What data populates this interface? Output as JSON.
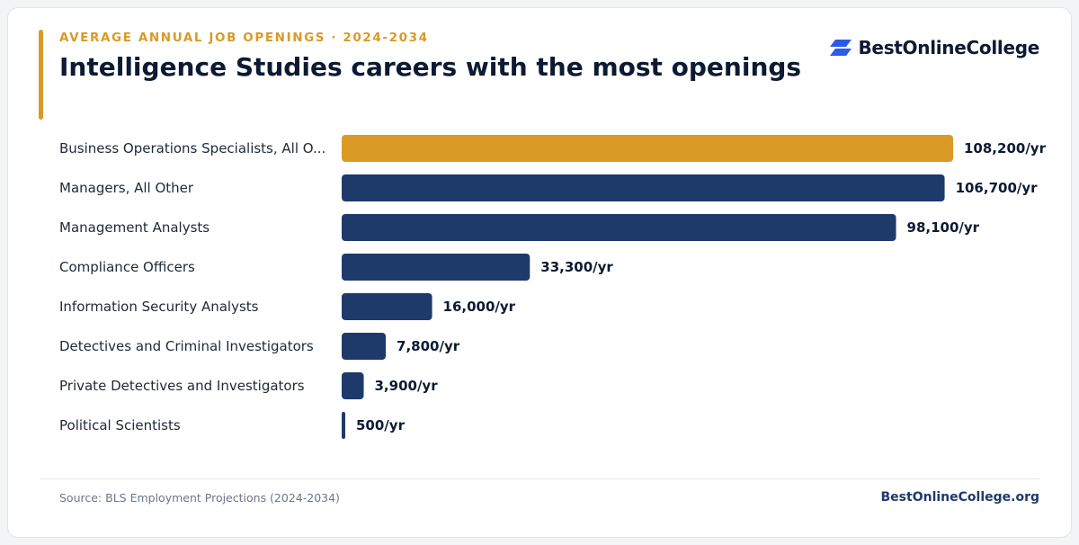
{
  "header": {
    "eyebrow": "AVERAGE ANNUAL JOB OPENINGS · 2024-2034",
    "title": "Intelligence Studies careers with the most openings"
  },
  "brand": {
    "name": "BestOnlineCollege",
    "site": "BestOnlineCollege.org"
  },
  "footer": {
    "source": "Source: BLS Employment Projections (2024-2034)"
  },
  "colors": {
    "highlight": "#d99a26",
    "bar": "#1e3a6b",
    "logo_mark": "#2b5ce6"
  },
  "chart_data": {
    "type": "bar",
    "orientation": "horizontal",
    "categories": [
      "Business Operations Specialists, All O...",
      "Managers, All Other",
      "Management Analysts",
      "Compliance Officers",
      "Information Security Analysts",
      "Detectives and Criminal Investigators",
      "Private Detectives and Investigators",
      "Political Scientists"
    ],
    "values": [
      108200,
      106700,
      98100,
      33300,
      16000,
      7800,
      3900,
      500
    ],
    "value_labels": [
      "108,200/yr",
      "106,700/yr",
      "98,100/yr",
      "33,300/yr",
      "16,000/yr",
      "7,800/yr",
      "3,900/yr",
      "500/yr"
    ],
    "highlight_index": 0,
    "xlim": [
      0,
      108200
    ],
    "grid": false,
    "legend": "none"
  }
}
